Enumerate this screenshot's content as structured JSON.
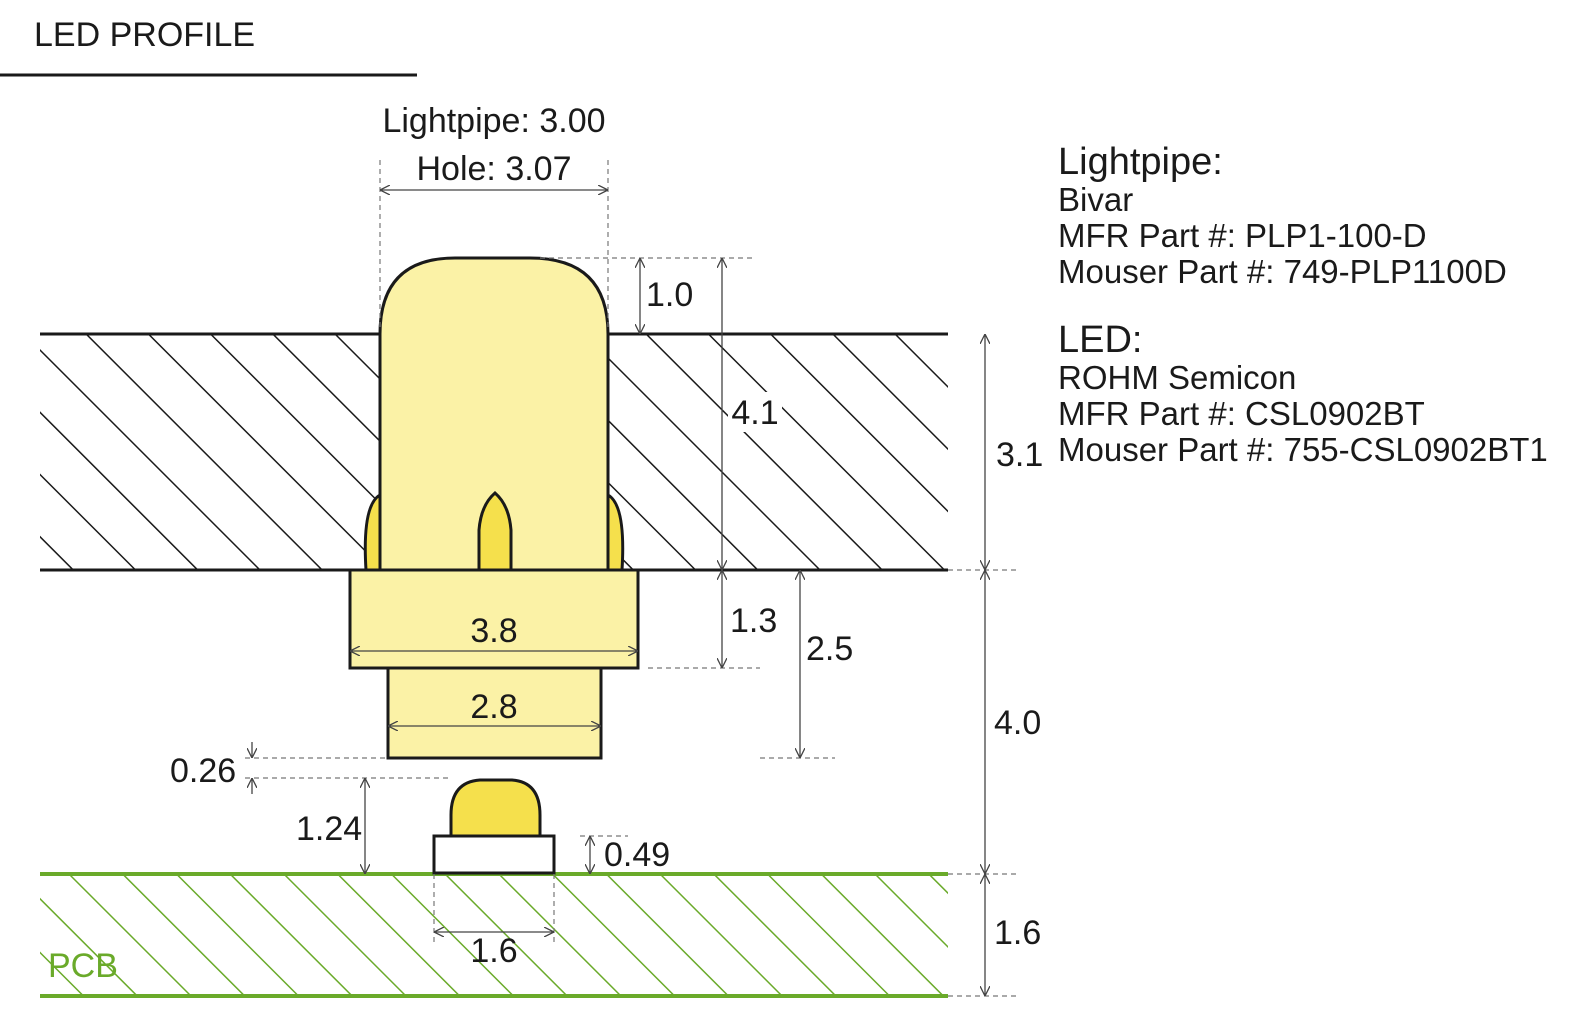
{
  "title": "LED PROFILE",
  "colors": {
    "outline": "#1a1a1a",
    "lightpipe_fill": "#fbf2a6",
    "led_dome_fill": "#f5e04c",
    "pcb_green": "#6aaa2a"
  },
  "dimensions": {
    "lightpipe_dia": "Lightpipe: 3.00",
    "hole_dia": "Hole: 3.07",
    "protrusion": "1.0",
    "pipe_height": "4.1",
    "panel_thickness": "3.1",
    "flange_height": "1.3",
    "base_to_bottom": "2.5",
    "flange_width": "3.8",
    "base_width": "2.8",
    "standoff": "4.0",
    "air_gap": "0.26",
    "led_height": "1.24",
    "led_base_height": "0.49",
    "led_width": "1.6",
    "pcb_thickness": "1.6"
  },
  "pcb_label": "PCB",
  "info": {
    "lightpipe_heading": "Lightpipe:",
    "lightpipe_lines": [
      "Bivar",
      "MFR Part #: PLP1-100-D",
      "Mouser Part #: 749-PLP1100D"
    ],
    "led_heading": "LED:",
    "led_lines": [
      "ROHM Semicon",
      "MFR Part #: CSL0902BT",
      "Mouser Part #: 755-CSL0902BT1"
    ]
  }
}
